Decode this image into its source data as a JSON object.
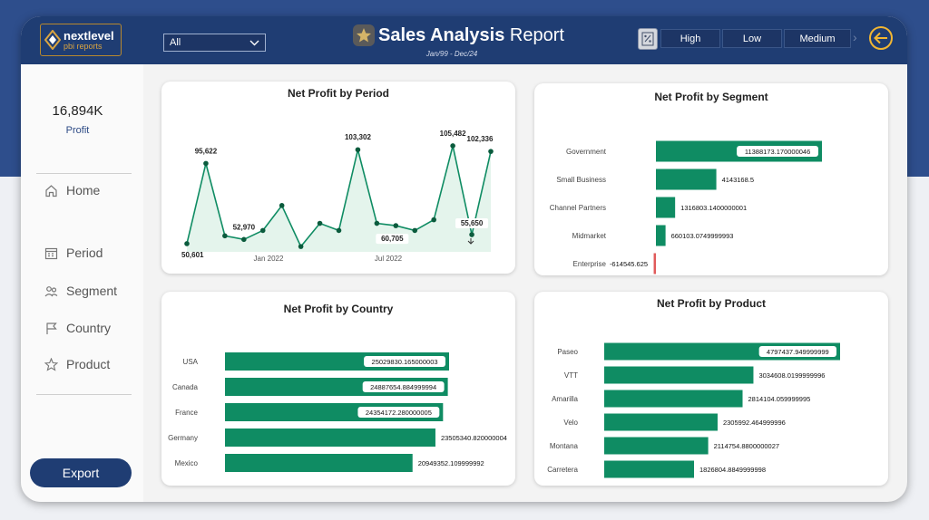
{
  "brand": {
    "name_line1": "nextlevel",
    "name_line2": "pbi reports"
  },
  "filter": {
    "selected": "All"
  },
  "header": {
    "title_bold": "Sales Analysis",
    "title_light": "Report",
    "date_range": "Jan/99 - Dec/24"
  },
  "priority_buttons": [
    "High",
    "Low",
    "Medium"
  ],
  "sidebar": {
    "kpi_value": "16,894K",
    "kpi_label": "Profit",
    "nav": [
      {
        "label": "Home",
        "icon": "home-icon"
      },
      {
        "label": "Period",
        "icon": "calendar-icon"
      },
      {
        "label": "Segment",
        "icon": "segment-icon"
      },
      {
        "label": "Country",
        "icon": "flag-icon"
      },
      {
        "label": "Product",
        "icon": "star-icon"
      }
    ],
    "export_label": "Export"
  },
  "colors": {
    "navy": "#1f3d73",
    "accent_green": "#0f8c63",
    "negative_red": "#e05a5a",
    "gold": "#f2b632"
  },
  "chart_data": [
    {
      "type": "line",
      "title": "Net Profit by Period",
      "x_tick_labels": [
        "Jan 2022",
        "Jul 2022"
      ],
      "values": [
        50601,
        95622,
        55000,
        52970,
        58000,
        72000,
        49000,
        62000,
        58000,
        103302,
        62000,
        60705,
        58000,
        64000,
        105482,
        55650,
        102336
      ],
      "data_labels": [
        {
          "index": 0,
          "text": "50,601"
        },
        {
          "index": 1,
          "text": "95,622"
        },
        {
          "index": 3,
          "text": "52,970"
        },
        {
          "index": 9,
          "text": "103,302"
        },
        {
          "index": 11,
          "text": "60,705"
        },
        {
          "index": 14,
          "text": "105,482"
        },
        {
          "index": 15,
          "text": "55,650"
        },
        {
          "index": 16,
          "text": "102,336"
        }
      ]
    },
    {
      "type": "bar",
      "title": "Net Profit by Segment",
      "categories": [
        "Government",
        "Small Business",
        "Channel Partners",
        "Midmarket",
        "Enterprise"
      ],
      "values": [
        11388173.17,
        4143168.5,
        1316803.14,
        660103.075,
        -614545.625
      ],
      "value_labels": [
        "11388173.170000046",
        "4143168.5",
        "1316803.1400000001",
        "660103.0749999993",
        "-614545.625"
      ]
    },
    {
      "type": "bar",
      "title": "Net Profit by Country",
      "categories": [
        "USA",
        "Canada",
        "France",
        "Germany",
        "Mexico"
      ],
      "values": [
        25029830.165,
        24887654.885,
        24354172.28,
        23505340.82,
        20949352.11
      ],
      "value_labels": [
        "25029830.165000003",
        "24887654.884999994",
        "24354172.280000005",
        "23505340.820000004",
        "20949352.109999992"
      ]
    },
    {
      "type": "bar",
      "title": "Net Profit by Product",
      "categories": [
        "Paseo",
        "VTT",
        "Amarilla",
        "Velo",
        "Montana",
        "Carretera"
      ],
      "values": [
        4797437.95,
        3034608.02,
        2814104.06,
        2305992.465,
        2114754.88,
        1826804.885
      ],
      "value_labels": [
        "4797437.949999999",
        "3034608.0199999996",
        "2814104.059999995",
        "2305992.464999996",
        "2114754.8800000027",
        "1826804.8849999998"
      ]
    }
  ]
}
